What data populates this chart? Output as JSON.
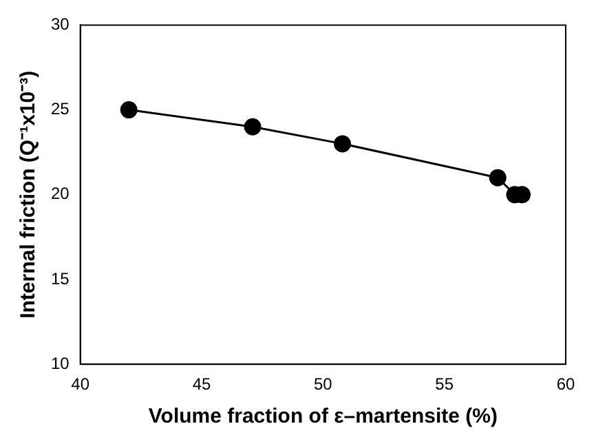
{
  "chart_data": {
    "type": "line",
    "xlabel": "Volume fraction of ε–martensite (%)",
    "ylabel": "Internal friction (Q⁻¹x10⁻³)",
    "x": [
      42,
      47.1,
      50.8,
      57.2,
      57.9,
      58.2
    ],
    "series": [
      {
        "color": "#000000",
        "values": [
          25,
          24,
          23,
          21,
          20,
          20
        ]
      }
    ],
    "xlim": [
      40,
      60
    ],
    "xticks": [
      40,
      45,
      50,
      55,
      60
    ],
    "ylim": [
      10,
      30
    ],
    "yticks": [
      10,
      15,
      20,
      25,
      30
    ],
    "grid": false,
    "legend": false,
    "marker": "circle",
    "line_style": "solid"
  }
}
